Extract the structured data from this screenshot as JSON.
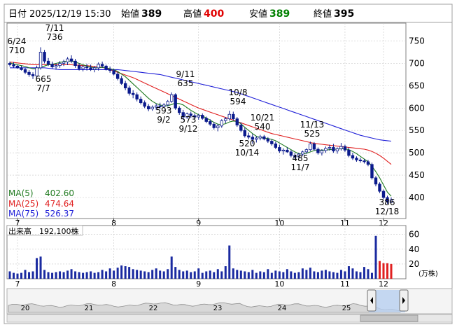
{
  "header": {
    "date_label": "日付",
    "datetime": "2025/12/19 15:30",
    "open_label": "始値",
    "open_value": "389",
    "high_label": "高値",
    "high_value": "400",
    "low_label": "安値",
    "low_value": "389",
    "close_label": "終値",
    "close_value": "395"
  },
  "colors": {
    "up": "#ffffff",
    "down": "#0b1a8c",
    "ma5": "#1f7a1f",
    "ma25": "#e02020",
    "ma75": "#2020d8",
    "volume": "#1a2aa0",
    "volume_recent": "#e02020",
    "grid": "#c8c8c8",
    "high_text": "#e00000",
    "low_text": "#008000"
  },
  "ma_legend": [
    {
      "label": "MA(5)",
      "value": "402.60"
    },
    {
      "label": "MA(25)",
      "value": "474.64"
    },
    {
      "label": "MA(75)",
      "value": "526.37"
    }
  ],
  "volume_panel": {
    "label": "出来高",
    "value": "192,100株",
    "unit": "(万株)"
  },
  "nav_ticks": [
    "20",
    "21",
    "22",
    "23",
    "24",
    "25"
  ],
  "chart_data": {
    "type": "candlestick",
    "x_ticks": [
      "7",
      "8",
      "9",
      "10",
      "11",
      "12"
    ],
    "y_ticks": [
      400,
      450,
      500,
      550,
      600,
      650,
      700,
      750
    ],
    "ylim": [
      353,
      790
    ],
    "annotations": [
      {
        "date": "6/24",
        "value": "710"
      },
      {
        "date": "7/11",
        "value": "736"
      },
      {
        "date": "7/7",
        "value": "665"
      },
      {
        "date": "9/11",
        "value": "635"
      },
      {
        "date": "9/2",
        "value": "593"
      },
      {
        "date": "9/12",
        "value": "573"
      },
      {
        "date": "10/8",
        "value": "594"
      },
      {
        "date": "10/14",
        "value": "520"
      },
      {
        "date": "10/21",
        "value": "540"
      },
      {
        "date": "11/13",
        "value": "525"
      },
      {
        "date": "11/7",
        "value": "485"
      },
      {
        "date": "12/18",
        "value": "386"
      }
    ],
    "candles": [
      [
        700,
        704,
        693,
        697
      ],
      [
        697,
        703,
        690,
        694
      ],
      [
        694,
        697,
        688,
        690
      ],
      [
        690,
        695,
        684,
        686
      ],
      [
        686,
        690,
        676,
        680
      ],
      [
        680,
        685,
        670,
        675
      ],
      [
        675,
        680,
        665,
        672
      ],
      [
        672,
        695,
        668,
        690
      ],
      [
        690,
        736,
        686,
        725
      ],
      [
        725,
        730,
        700,
        705
      ],
      [
        705,
        712,
        694,
        698
      ],
      [
        698,
        704,
        689,
        692
      ],
      [
        692,
        700,
        686,
        695
      ],
      [
        695,
        705,
        690,
        700
      ],
      [
        700,
        708,
        694,
        703
      ],
      [
        703,
        714,
        696,
        710
      ],
      [
        710,
        718,
        701,
        705
      ],
      [
        705,
        710,
        690,
        695
      ],
      [
        695,
        700,
        684,
        688
      ],
      [
        688,
        696,
        682,
        692
      ],
      [
        692,
        699,
        684,
        690
      ],
      [
        690,
        697,
        683,
        686
      ],
      [
        686,
        694,
        680,
        690
      ],
      [
        690,
        702,
        684,
        698
      ],
      [
        698,
        704,
        690,
        694
      ],
      [
        694,
        697,
        684,
        687
      ],
      [
        687,
        693,
        679,
        684
      ],
      [
        684,
        688,
        673,
        676
      ],
      [
        676,
        681,
        662,
        666
      ],
      [
        666,
        672,
        652,
        655
      ],
      [
        655,
        661,
        640,
        645
      ],
      [
        645,
        650,
        628,
        633
      ],
      [
        633,
        640,
        622,
        630
      ],
      [
        630,
        635,
        615,
        620
      ],
      [
        620,
        626,
        608,
        612
      ],
      [
        612,
        617,
        600,
        604
      ],
      [
        604,
        609,
        593,
        598
      ],
      [
        598,
        606,
        594,
        602
      ],
      [
        602,
        610,
        596,
        605
      ],
      [
        605,
        612,
        598,
        603
      ],
      [
        603,
        611,
        600,
        607
      ],
      [
        607,
        618,
        604,
        615
      ],
      [
        615,
        635,
        612,
        630
      ],
      [
        630,
        633,
        596,
        600
      ],
      [
        600,
        604,
        585,
        590
      ],
      [
        590,
        596,
        573,
        580
      ],
      [
        580,
        590,
        576,
        587
      ],
      [
        587,
        592,
        578,
        583
      ],
      [
        583,
        588,
        576,
        580
      ],
      [
        580,
        587,
        574,
        584
      ],
      [
        584,
        588,
        574,
        577
      ],
      [
        577,
        581,
        566,
        570
      ],
      [
        570,
        575,
        560,
        564
      ],
      [
        564,
        569,
        552,
        556
      ],
      [
        556,
        564,
        548,
        560
      ],
      [
        560,
        575,
        556,
        572
      ],
      [
        572,
        580,
        566,
        576
      ],
      [
        576,
        594,
        572,
        586
      ],
      [
        586,
        592,
        572,
        576
      ],
      [
        576,
        580,
        558,
        562
      ],
      [
        562,
        568,
        546,
        550
      ],
      [
        550,
        556,
        534,
        538
      ],
      [
        538,
        545,
        530,
        535
      ],
      [
        535,
        542,
        520,
        530
      ],
      [
        530,
        537,
        523,
        533
      ],
      [
        533,
        540,
        528,
        536
      ],
      [
        536,
        540,
        528,
        531
      ],
      [
        531,
        535,
        522,
        526
      ],
      [
        526,
        530,
        516,
        520
      ],
      [
        520,
        525,
        508,
        512
      ],
      [
        512,
        518,
        500,
        504
      ],
      [
        504,
        510,
        496,
        506
      ],
      [
        506,
        512,
        500,
        502
      ],
      [
        502,
        506,
        490,
        494
      ],
      [
        494,
        500,
        485,
        491
      ],
      [
        491,
        500,
        488,
        497
      ],
      [
        497,
        505,
        493,
        502
      ],
      [
        502,
        510,
        498,
        507
      ],
      [
        507,
        525,
        504,
        520
      ],
      [
        520,
        524,
        505,
        508
      ],
      [
        508,
        512,
        496,
        500
      ],
      [
        500,
        508,
        494,
        505
      ],
      [
        505,
        514,
        500,
        510
      ],
      [
        510,
        518,
        505,
        512
      ],
      [
        512,
        520,
        500,
        504
      ],
      [
        504,
        512,
        498,
        509
      ],
      [
        509,
        522,
        505,
        514
      ],
      [
        514,
        518,
        502,
        506
      ],
      [
        506,
        512,
        490,
        494
      ],
      [
        494,
        500,
        484,
        488
      ],
      [
        488,
        492,
        480,
        484
      ],
      [
        484,
        489,
        478,
        482
      ],
      [
        482,
        486,
        476,
        480
      ],
      [
        480,
        484,
        470,
        474
      ],
      [
        474,
        478,
        440,
        444
      ],
      [
        444,
        448,
        425,
        430
      ],
      [
        430,
        434,
        410,
        414
      ],
      [
        414,
        418,
        396,
        400
      ],
      [
        400,
        404,
        386,
        390
      ],
      [
        389,
        400,
        389,
        395
      ]
    ],
    "ma5": [
      701,
      699,
      697,
      695,
      693,
      690,
      688,
      688,
      691,
      694,
      697,
      698,
      700,
      702,
      704,
      705,
      705,
      703,
      700,
      697,
      694,
      692,
      690,
      690,
      691,
      690,
      688,
      686,
      682,
      676,
      670,
      662,
      654,
      646,
      638,
      630,
      622,
      615,
      610,
      607,
      605,
      605,
      608,
      611,
      610,
      607,
      601,
      595,
      590,
      585,
      582,
      578,
      573,
      568,
      564,
      563,
      565,
      569,
      571,
      570,
      565,
      557,
      550,
      543,
      537,
      534,
      533,
      532,
      530,
      527,
      522,
      517,
      512,
      507,
      502,
      498,
      497,
      499,
      502,
      505,
      506,
      506,
      506,
      507,
      508,
      508,
      509,
      509,
      507,
      503,
      498,
      492,
      486,
      480,
      470,
      458,
      444,
      428,
      412,
      403
    ],
    "ma25": [
      703,
      702,
      701,
      700,
      699,
      698,
      697,
      697,
      697,
      697,
      697,
      697,
      697,
      697,
      697,
      697,
      697,
      696,
      696,
      695,
      695,
      694,
      693,
      692,
      691,
      689,
      686,
      683,
      680,
      677,
      674,
      671,
      668,
      664,
      660,
      656,
      652,
      648,
      644,
      640,
      636,
      632,
      628,
      624,
      620,
      616,
      612,
      608,
      604,
      600,
      597,
      594,
      591,
      588,
      585,
      582,
      579,
      576,
      573,
      570,
      567,
      564,
      561,
      558,
      555,
      552,
      549,
      546,
      543,
      541,
      539,
      537,
      535,
      533,
      531,
      529,
      527,
      525,
      523,
      521,
      520,
      519,
      518,
      517,
      516,
      515,
      514,
      513,
      512,
      511,
      510,
      509,
      508,
      506,
      503,
      499,
      494,
      488,
      481,
      474
    ],
    "ma75": [
      690,
      690,
      690,
      690,
      690,
      690,
      690,
      690,
      690,
      690,
      689,
      688,
      687,
      686,
      686,
      686,
      686,
      686,
      686,
      686,
      686,
      686,
      686,
      686,
      686,
      686,
      686,
      686,
      686,
      685,
      684,
      683,
      682,
      681,
      680,
      679,
      678,
      677,
      676,
      675,
      673,
      671,
      669,
      667,
      665,
      663,
      661,
      659,
      657,
      655,
      653,
      651,
      649,
      647,
      645,
      643,
      641,
      639,
      637,
      635,
      632,
      629,
      626,
      623,
      620,
      617,
      614,
      611,
      608,
      605,
      602,
      599,
      596,
      593,
      590,
      587,
      584,
      581,
      578,
      575,
      572,
      569,
      566,
      563,
      560,
      557,
      554,
      551,
      548,
      545,
      542,
      539,
      537,
      535,
      533,
      531,
      529,
      528,
      527,
      526
    ],
    "volume": [
      10,
      8,
      7,
      8,
      12,
      9,
      10,
      28,
      30,
      12,
      9,
      8,
      9,
      10,
      9,
      11,
      13,
      10,
      9,
      8,
      9,
      10,
      8,
      9,
      12,
      10,
      14,
      11,
      15,
      18,
      17,
      16,
      13,
      12,
      11,
      10,
      9,
      12,
      14,
      11,
      10,
      13,
      30,
      16,
      12,
      10,
      11,
      9,
      10,
      14,
      8,
      10,
      11,
      9,
      13,
      10,
      17,
      45,
      14,
      12,
      11,
      10,
      9,
      12,
      8,
      10,
      9,
      13,
      8,
      11,
      10,
      9,
      13,
      10,
      8,
      9,
      14,
      12,
      15,
      10,
      9,
      11,
      12,
      10,
      9,
      8,
      12,
      10,
      17,
      14,
      10,
      9,
      16,
      13,
      8,
      58,
      24,
      21,
      21,
      20
    ]
  }
}
